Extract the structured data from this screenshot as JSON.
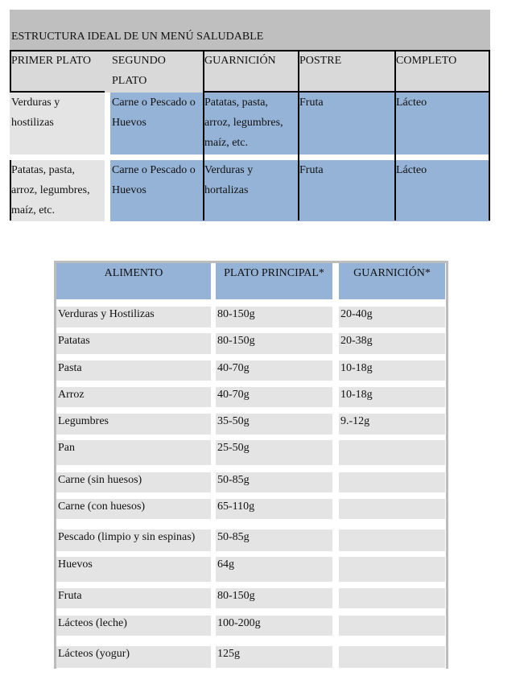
{
  "table1": {
    "title": "ESTRUCTURA IDEAL DE UN MENÚ SALUDABLE",
    "headers": [
      "PRIMER PLATO",
      "SEGUNDO\nPLATO",
      "GUARNICIÓN",
      "POSTRE",
      "COMPLETO"
    ],
    "rows": [
      [
        "Verduras y\nhostilizas",
        "Carne o Pescado o\nHuevos",
        "Patatas, pasta,\narroz, legumbres,\nmaíz, etc.",
        "Fruta",
        "Lácteo"
      ],
      [
        "Patatas, pasta,\narroz, legumbres,\nmaíz, etc.",
        "Carne o Pescado o\nHuevos",
        "Verduras y\nhortalizas",
        "Fruta",
        "Lácteo"
      ]
    ]
  },
  "table2": {
    "headers": [
      "ALIMENTO",
      "PLATO PRINCIPAL*",
      "GUARNICIÓN*"
    ],
    "rows": [
      [
        "Verduras y Hostilizas",
        "80-150g",
        "20-40g"
      ],
      [
        "Patatas",
        "80-150g",
        "20-38g"
      ],
      [
        "Pasta",
        "40-70g",
        "10-18g"
      ],
      [
        "Arroz",
        "40-70g",
        "10-18g"
      ],
      [
        "Legumbres",
        "35-50g",
        "9.-12g"
      ],
      [
        "Pan",
        "25-50g",
        ""
      ],
      [
        "Carne (sin huesos)",
        "50-85g",
        ""
      ],
      [
        "Carne (con huesos)",
        "65-110g",
        ""
      ],
      [
        "Pescado (limpio y sin espinas)",
        "50-85g",
        ""
      ],
      [
        "Huevos",
        "64g",
        ""
      ],
      [
        "Fruta",
        "80-150g",
        ""
      ],
      [
        "Lácteos (leche)",
        "100-200g",
        ""
      ],
      [
        "Lácteos (yogur)",
        "125g",
        ""
      ]
    ]
  },
  "colors": {
    "header_gray": "#d9d9d9",
    "title_gray": "#bfbfbf",
    "cell_gray": "#e4e4e4",
    "cell_blue": "#95b3d7"
  }
}
